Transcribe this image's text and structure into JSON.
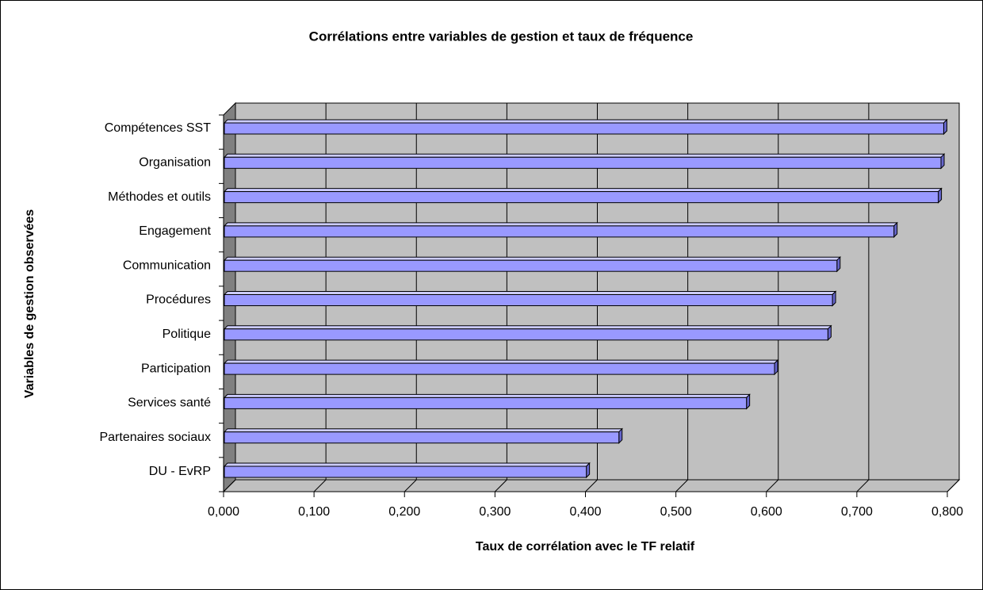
{
  "chart_data": {
    "type": "bar",
    "orientation": "horizontal",
    "title": "Corrélations entre variables de gestion et taux de fréquence",
    "x_label": "Taux de corrélation avec le TF relatif",
    "y_label": "Variables de gestion observées",
    "categories": [
      "Compétences SST",
      "Organisation",
      "Méthodes et outils",
      "Engagement",
      "Communication",
      "Procédures",
      "Politique",
      "Participation",
      "Services santé",
      "Partenaires sociaux",
      "DU - EvRP"
    ],
    "values": [
      0.796,
      0.793,
      0.79,
      0.741,
      0.678,
      0.673,
      0.668,
      0.609,
      0.578,
      0.437,
      0.401
    ],
    "color": "#9999ff",
    "xlim": [
      0,
      0.8
    ],
    "xticks": [
      {
        "value": 0,
        "label": "0,000"
      },
      {
        "value": 0.1,
        "label": "0,100"
      },
      {
        "value": 0.2,
        "label": "0,200"
      },
      {
        "value": 0.3,
        "label": "0,300"
      },
      {
        "value": 0.4,
        "label": "0,400"
      },
      {
        "value": 0.5,
        "label": "0,500"
      },
      {
        "value": 0.6,
        "label": "0,600"
      },
      {
        "value": 0.7,
        "label": "0,700"
      },
      {
        "value": 0.8,
        "label": "0,800"
      }
    ],
    "grid": true
  }
}
